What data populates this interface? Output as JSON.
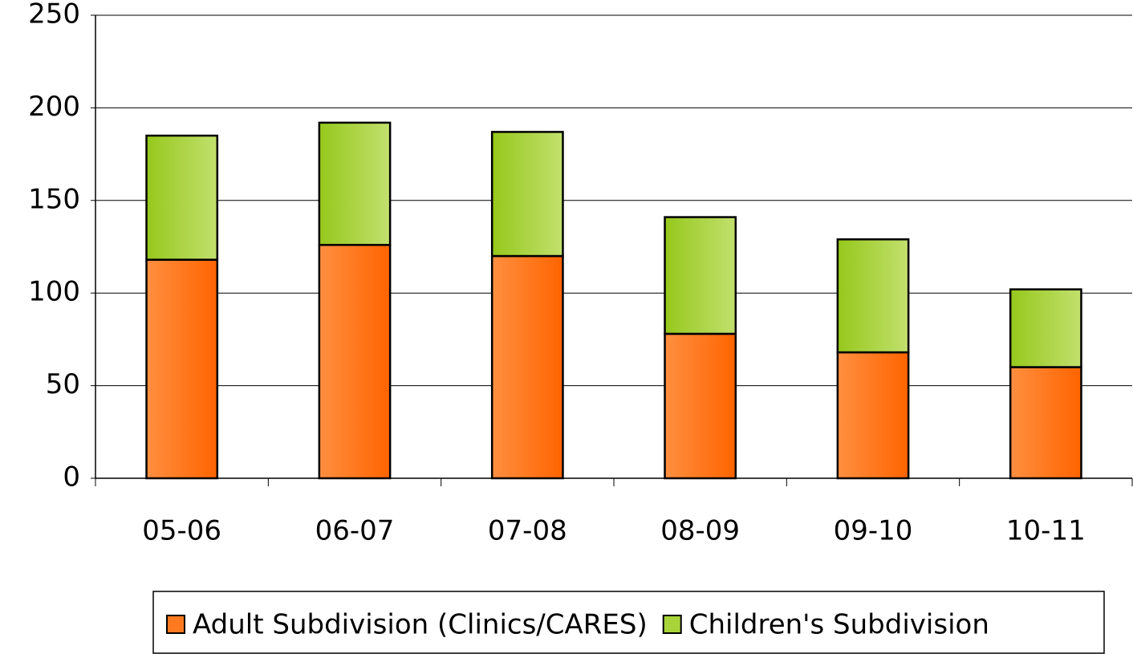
{
  "chart_data": {
    "type": "stacked_bar",
    "categories": [
      "05-06",
      "06-07",
      "07-08",
      "08-09",
      "09-10",
      "10-11"
    ],
    "series": [
      {
        "name": "Adult Subdivision (Clinics/CARES)",
        "color": "#ff7a1f",
        "values": [
          118,
          126,
          120,
          78,
          68,
          60
        ]
      },
      {
        "name": "Children's Subdivision",
        "color": "#a8d43a",
        "values": [
          67,
          66,
          67,
          63,
          61,
          42
        ]
      }
    ],
    "ylim": [
      0,
      250
    ],
    "yticks": [
      0,
      50,
      100,
      150,
      200,
      250
    ],
    "grid": true,
    "legend": "bottom"
  }
}
